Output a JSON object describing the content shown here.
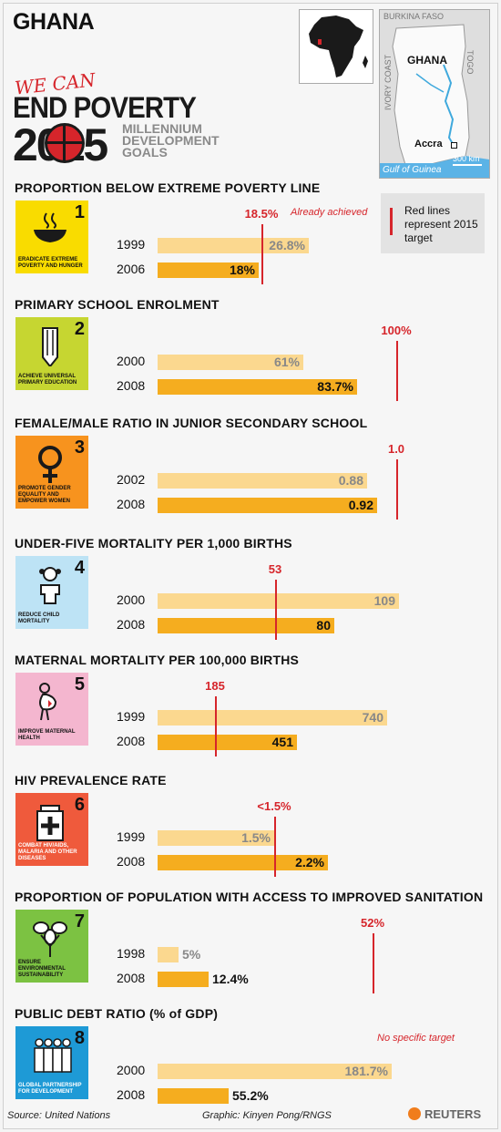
{
  "title": "GHANA",
  "logo": {
    "line1": "WE CAN",
    "line2": "END POVERTY",
    "line3": "2015",
    "line4": "MILLENNIUM",
    "line5": "DEVELOPMENT",
    "line6": "GOALS"
  },
  "map": {
    "country": "GHANA",
    "neighbors": [
      "BURKINA FASO",
      "IVORY COAST",
      "TOGO"
    ],
    "capital": "Accra",
    "sea": "Gulf of Guinea",
    "scale": "300 km"
  },
  "legend": {
    "text": "Red lines represent 2015 target"
  },
  "colors": {
    "target": "#d6252b",
    "bar_early": "#fbd88f",
    "bar_late": "#f5ad1f"
  },
  "chart_data": [
    {
      "type": "bar",
      "title": "PROPORTION BELOW EXTREME POVERTY LINE",
      "goal": {
        "number": "1",
        "label": "ERADICATE EXTREME POVERTY AND HUNGER",
        "color": "#f9dc00",
        "icon": "bowl-icon"
      },
      "categories": [
        "1999",
        "2006"
      ],
      "values": [
        26.8,
        18
      ],
      "value_labels": [
        "26.8%",
        "18%"
      ],
      "target": 18.5,
      "target_label": "18.5%",
      "note": "Already achieved"
    },
    {
      "type": "bar",
      "title": "PRIMARY SCHOOL ENROLMENT",
      "goal": {
        "number": "2",
        "label": "ACHIEVE UNIVERSAL PRIMARY EDUCATION",
        "color": "#c6d631",
        "icon": "pencil-icon"
      },
      "categories": [
        "2000",
        "2008"
      ],
      "values": [
        61,
        83.7
      ],
      "value_labels": [
        "61%",
        "83.7%"
      ],
      "target": 100,
      "target_label": "100%"
    },
    {
      "type": "bar",
      "title": "FEMALE/MALE RATIO IN JUNIOR SECONDARY SCHOOL",
      "goal": {
        "number": "3",
        "label": "PROMOTE GENDER EQUALITY AND EMPOWER WOMEN",
        "color": "#f7931e",
        "icon": "female-symbol-icon"
      },
      "categories": [
        "2002",
        "2008"
      ],
      "values": [
        0.88,
        0.92
      ],
      "value_labels": [
        "0.88",
        "0.92"
      ],
      "target": 1.0,
      "target_label": "1.0"
    },
    {
      "type": "bar",
      "title": "UNDER-FIVE MORTALITY PER 1,000 BIRTHS",
      "goal": {
        "number": "4",
        "label": "REDUCE CHILD MORTALITY",
        "color": "#bde3f5",
        "icon": "child-icon"
      },
      "categories": [
        "2000",
        "2008"
      ],
      "values": [
        109,
        80
      ],
      "value_labels": [
        "109",
        "80"
      ],
      "target": 53,
      "target_label": "53"
    },
    {
      "type": "bar",
      "title": "MATERNAL MORTALITY PER 100,000 BIRTHS",
      "goal": {
        "number": "5",
        "label": "IMPROVE MATERNAL HEALTH",
        "color": "#f4b6cf",
        "icon": "pregnant-woman-icon"
      },
      "categories": [
        "1999",
        "2008"
      ],
      "values": [
        740,
        451
      ],
      "value_labels": [
        "740",
        "451"
      ],
      "target": 185,
      "target_label": "185"
    },
    {
      "type": "bar",
      "title": "HIV PREVALENCE RATE",
      "goal": {
        "number": "6",
        "label": "COMBAT HIV/AIDS, MALARIA AND OTHER DISEASES",
        "color": "#ef5a3c",
        "icon": "medicine-bottle-icon"
      },
      "categories": [
        "1999",
        "2008"
      ],
      "values": [
        1.5,
        2.2
      ],
      "value_labels": [
        "1.5%",
        "2.2%"
      ],
      "target": 1.5,
      "target_label": "<1.5%"
    },
    {
      "type": "bar",
      "title": "PROPORTION OF POPULATION WITH ACCESS TO IMPROVED SANITATION",
      "goal": {
        "number": "7",
        "label": "ENSURE ENVIRONMENTAL SUSTAINABILITY",
        "color": "#7cc242",
        "icon": "plant-icon"
      },
      "categories": [
        "1998",
        "2008"
      ],
      "values": [
        5,
        12.4
      ],
      "value_labels": [
        "5%",
        "12.4%"
      ],
      "target": 52,
      "target_label": "52%"
    },
    {
      "type": "bar",
      "title": "PUBLIC DEBT RATIO (% of GDP)",
      "goal": {
        "number": "8",
        "label": "GLOBAL PARTNERSHIP FOR DEVELOPMENT",
        "color": "#1e9ad6",
        "icon": "people-group-icon"
      },
      "categories": [
        "2000",
        "2008"
      ],
      "values": [
        181.7,
        55.2
      ],
      "value_labels": [
        "181.7%",
        "55.2%"
      ],
      "target": null,
      "target_label": "",
      "note": "No specific target"
    }
  ],
  "footer": {
    "source": "Source: United Nations",
    "graphic": "Graphic: Kinyen Pong/RNGS",
    "brand": "REUTERS"
  }
}
